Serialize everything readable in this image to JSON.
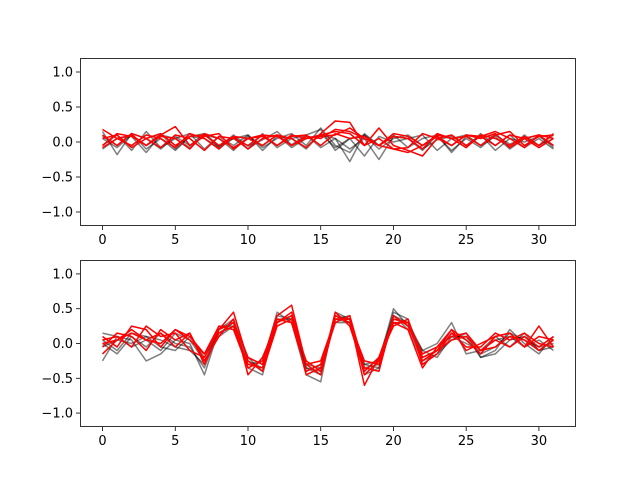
{
  "colors": {
    "black_series": "#000000",
    "red_series": "#ff0000",
    "axes": "#000000",
    "background": "#ffffff"
  },
  "chart_data": [
    {
      "type": "line",
      "xlim": [
        -1.55,
        32.55
      ],
      "ylim": [
        -1.2,
        1.2
      ],
      "xticks": [
        0,
        5,
        10,
        15,
        20,
        25,
        30
      ],
      "yticks": [
        -1.0,
        -0.5,
        0.0,
        0.5,
        1.0
      ],
      "xtick_labels": [
        "0",
        "5",
        "10",
        "15",
        "20",
        "25",
        "30"
      ],
      "ytick_labels": [
        "−1.0",
        "−0.5",
        "0.0",
        "0.5",
        "1.0"
      ],
      "x": [
        0,
        1,
        2,
        3,
        4,
        5,
        6,
        7,
        8,
        9,
        10,
        11,
        12,
        13,
        14,
        15,
        16,
        17,
        18,
        19,
        20,
        21,
        22,
        23,
        24,
        25,
        26,
        27,
        28,
        29,
        30,
        31
      ],
      "grid": false,
      "legend": "none",
      "series": [
        {
          "color": "black",
          "values": [
            0.05,
            -0.08,
            0.1,
            -0.05,
            0.12,
            -0.1,
            0.08,
            0.05,
            -0.07,
            0.1,
            -0.06,
            0.03,
            0.15,
            -0.04,
            0.1,
            0.18,
            -0.12,
            0.05,
            -0.2,
            0.08,
            0.0,
            0.05,
            -0.1,
            0.03,
            0.08,
            -0.05,
            0.1,
            -0.12,
            0.05,
            0.0,
            0.08,
            -0.05
          ]
        },
        {
          "color": "black",
          "values": [
            -0.05,
            0.1,
            -0.12,
            0.15,
            -0.08,
            0.05,
            0.12,
            -0.1,
            0.08,
            -0.05,
            0.1,
            -0.08,
            0.05,
            0.12,
            -0.05,
            0.2,
            -0.05,
            -0.15,
            0.1,
            -0.1,
            0.05,
            0.1,
            -0.05,
            0.08,
            -0.12,
            0.05,
            -0.08,
            0.1,
            -0.03,
            0.05,
            -0.05,
            0.1
          ]
        },
        {
          "color": "black",
          "values": [
            0.15,
            -0.18,
            0.12,
            -0.1,
            0.05,
            -0.12,
            0.08,
            0.12,
            -0.05,
            0.05,
            -0.1,
            0.12,
            -0.08,
            0.05,
            0.1,
            -0.08,
            0.05,
            -0.1,
            0.05,
            -0.25,
            0.08,
            0.05,
            0.1,
            -0.12,
            0.05,
            0.1,
            -0.05,
            0.08,
            -0.1,
            0.05,
            0.1,
            -0.08
          ]
        },
        {
          "color": "black",
          "values": [
            -0.1,
            0.05,
            0.08,
            -0.15,
            0.1,
            0.05,
            -0.08,
            0.1,
            0.05,
            -0.12,
            0.08,
            -0.05,
            0.1,
            -0.08,
            0.05,
            0.1,
            0.05,
            -0.28,
            0.12,
            -0.05,
            0.1,
            -0.08,
            0.05,
            0.1,
            -0.15,
            0.08,
            -0.05,
            0.12,
            -0.08,
            0.1,
            -0.05,
            0.05
          ]
        },
        {
          "color": "black",
          "values": [
            0.08,
            -0.05,
            0.12,
            0.05,
            -0.1,
            0.08,
            -0.05,
            0.12,
            -0.08,
            0.05,
            0.1,
            -0.12,
            0.08,
            0.05,
            -0.1,
            0.12,
            -0.08,
            0.05,
            0.1,
            -0.05,
            0.08,
            0.05,
            -0.12,
            0.1,
            0.05,
            -0.08,
            0.12,
            -0.05,
            0.1,
            -0.08,
            0.05,
            -0.1
          ]
        },
        {
          "color": "red",
          "values": [
            0.18,
            0.05,
            -0.05,
            0.1,
            0.05,
            -0.08,
            0.12,
            0.05,
            -0.1,
            0.08,
            0.05,
            -0.05,
            0.1,
            0.05,
            -0.08,
            0.12,
            0.3,
            0.28,
            -0.05,
            0.2,
            -0.05,
            -0.12,
            -0.2,
            0.05,
            0.1,
            -0.05,
            0.08,
            0.15,
            0.05,
            -0.08,
            0.1,
            0.05
          ]
        },
        {
          "color": "red",
          "values": [
            -0.05,
            0.12,
            0.08,
            -0.05,
            0.1,
            0.22,
            -0.05,
            0.08,
            0.12,
            -0.1,
            0.05,
            0.08,
            -0.05,
            0.1,
            0.05,
            0.08,
            0.1,
            0.2,
            0.05,
            -0.05,
            0.08,
            0.05,
            -0.1,
            0.12,
            0.05,
            0.08,
            -0.05,
            0.1,
            0.15,
            -0.05,
            0.08,
            0.1
          ]
        },
        {
          "color": "red",
          "values": [
            0.1,
            -0.05,
            0.12,
            0.05,
            -0.08,
            0.1,
            0.05,
            -0.12,
            0.08,
            0.05,
            -0.05,
            0.1,
            0.08,
            -0.05,
            0.05,
            0.1,
            0.15,
            0.12,
            -0.05,
            0.05,
            -0.1,
            -0.15,
            -0.05,
            0.08,
            -0.05,
            0.1,
            0.05,
            0.12,
            -0.08,
            0.05,
            0.1,
            -0.05
          ]
        },
        {
          "color": "red",
          "values": [
            0.05,
            0.1,
            -0.08,
            0.05,
            0.12,
            -0.05,
            0.08,
            0.1,
            -0.05,
            0.08,
            -0.1,
            0.05,
            0.1,
            -0.05,
            0.08,
            0.05,
            0.18,
            0.15,
            0.05,
            -0.05,
            0.12,
            0.08,
            -0.05,
            0.1,
            0.05,
            -0.08,
            0.1,
            0.05,
            -0.05,
            0.08,
            -0.05,
            0.12
          ]
        },
        {
          "color": "red",
          "values": [
            -0.08,
            0.05,
            0.1,
            -0.05,
            0.08,
            0.05,
            -0.1,
            0.12,
            0.05,
            -0.08,
            0.05,
            0.1,
            -0.05,
            0.08,
            0.1,
            -0.05,
            0.12,
            0.05,
            0.08,
            -0.05,
            -0.1,
            -0.08,
            0.12,
            0.05,
            -0.05,
            0.1,
            0.08,
            -0.05,
            0.1,
            0.05,
            -0.08,
            0.05
          ]
        }
      ]
    },
    {
      "type": "line",
      "xlim": [
        -1.55,
        32.55
      ],
      "ylim": [
        -1.2,
        1.2
      ],
      "xticks": [
        0,
        5,
        10,
        15,
        20,
        25,
        30
      ],
      "yticks": [
        -1.0,
        -0.5,
        0.0,
        0.5,
        1.0
      ],
      "xtick_labels": [
        "0",
        "5",
        "10",
        "15",
        "20",
        "25",
        "30"
      ],
      "ytick_labels": [
        "−1.0",
        "−0.5",
        "0.0",
        "0.5",
        "1.0"
      ],
      "x": [
        0,
        1,
        2,
        3,
        4,
        5,
        6,
        7,
        8,
        9,
        10,
        11,
        12,
        13,
        14,
        15,
        16,
        17,
        18,
        19,
        20,
        21,
        22,
        23,
        24,
        25,
        26,
        27,
        28,
        29,
        30,
        31
      ],
      "grid": false,
      "legend": "none",
      "series": [
        {
          "color": "black",
          "values": [
            -0.25,
            0.1,
            0.05,
            -0.25,
            -0.15,
            0.05,
            0.0,
            -0.45,
            0.2,
            0.35,
            -0.2,
            -0.4,
            0.35,
            0.3,
            -0.45,
            -0.55,
            0.45,
            0.35,
            -0.3,
            -0.25,
            0.5,
            0.25,
            -0.1,
            0.0,
            0.3,
            -0.15,
            -0.1,
            0.1,
            -0.05,
            0.15,
            -0.1,
            0.05
          ]
        },
        {
          "color": "black",
          "values": [
            0.15,
            0.1,
            -0.05,
            0.05,
            -0.1,
            0.15,
            0.05,
            -0.25,
            0.1,
            0.25,
            -0.3,
            -0.25,
            0.4,
            0.35,
            -0.3,
            -0.35,
            0.3,
            0.3,
            -0.4,
            -0.2,
            0.4,
            0.3,
            -0.15,
            -0.05,
            0.1,
            0.1,
            -0.2,
            -0.1,
            0.2,
            0.0,
            -0.15,
            0.1
          ]
        },
        {
          "color": "black",
          "values": [
            0.05,
            -0.1,
            0.15,
            0.1,
            -0.05,
            -0.1,
            0.1,
            -0.2,
            0.15,
            0.3,
            -0.25,
            -0.35,
            0.3,
            0.4,
            -0.35,
            -0.4,
            0.4,
            0.35,
            -0.35,
            -0.3,
            0.45,
            0.35,
            -0.2,
            -0.1,
            0.15,
            0.05,
            -0.15,
            -0.05,
            0.15,
            0.05,
            -0.05,
            0.0
          ]
        },
        {
          "color": "black",
          "values": [
            -0.05,
            0.05,
            0.0,
            0.1,
            0.05,
            -0.05,
            -0.1,
            -0.3,
            0.25,
            0.25,
            -0.35,
            -0.45,
            0.35,
            0.35,
            -0.4,
            -0.3,
            0.35,
            0.4,
            -0.45,
            -0.35,
            0.4,
            0.2,
            -0.25,
            -0.15,
            0.05,
            0.15,
            -0.2,
            -0.15,
            0.05,
            0.1,
            -0.1,
            -0.05
          ]
        },
        {
          "color": "black",
          "values": [
            0.0,
            -0.15,
            0.1,
            -0.05,
            0.15,
            0.0,
            -0.05,
            -0.35,
            0.2,
            0.3,
            -0.2,
            -0.3,
            0.45,
            0.3,
            -0.35,
            -0.45,
            0.35,
            0.3,
            -0.3,
            -0.35,
            0.35,
            0.3,
            -0.1,
            -0.2,
            0.1,
            0.0,
            -0.1,
            0.05,
            0.1,
            -0.05,
            0.05,
            -0.1
          ]
        },
        {
          "color": "red",
          "values": [
            0.1,
            -0.05,
            0.25,
            0.2,
            -0.05,
            0.2,
            0.05,
            -0.15,
            0.25,
            0.2,
            -0.35,
            -0.25,
            0.4,
            0.55,
            -0.3,
            -0.25,
            0.35,
            0.35,
            -0.6,
            -0.2,
            0.35,
            0.3,
            -0.25,
            -0.1,
            0.2,
            0.05,
            -0.15,
            0.1,
            0.15,
            -0.05,
            0.25,
            -0.05
          ]
        },
        {
          "color": "red",
          "values": [
            -0.15,
            0.05,
            0.2,
            0.05,
            0.15,
            -0.05,
            0.15,
            -0.25,
            0.1,
            0.35,
            -0.45,
            -0.2,
            0.3,
            0.4,
            -0.45,
            -0.35,
            0.4,
            0.3,
            -0.25,
            -0.3,
            0.3,
            0.2,
            -0.35,
            -0.05,
            0.1,
            0.15,
            -0.1,
            0.05,
            -0.05,
            0.1,
            -0.05,
            0.1
          ]
        },
        {
          "color": "red",
          "values": [
            0.05,
            0.1,
            -0.05,
            0.25,
            0.1,
            0.15,
            -0.1,
            -0.2,
            0.2,
            0.45,
            -0.25,
            -0.4,
            0.25,
            0.35,
            -0.25,
            -0.4,
            0.45,
            0.25,
            -0.4,
            -0.2,
            0.25,
            0.35,
            -0.3,
            -0.15,
            0.15,
            -0.05,
            -0.05,
            0.15,
            0.05,
            0.15,
            0.0,
            -0.05
          ]
        },
        {
          "color": "red",
          "values": [
            -0.05,
            0.15,
            0.1,
            -0.1,
            0.2,
            0.05,
            0.15,
            -0.3,
            0.15,
            0.25,
            -0.3,
            -0.35,
            0.35,
            0.3,
            -0.4,
            -0.3,
            0.3,
            0.4,
            -0.35,
            -0.4,
            0.4,
            0.25,
            -0.2,
            -0.1,
            0.05,
            0.1,
            -0.1,
            -0.05,
            0.1,
            0.05,
            -0.1,
            0.05
          ]
        },
        {
          "color": "red",
          "values": [
            0.0,
            0.05,
            0.15,
            0.05,
            0.0,
            0.2,
            0.1,
            -0.15,
            0.2,
            0.3,
            -0.2,
            -0.3,
            0.3,
            0.45,
            -0.3,
            -0.45,
            0.35,
            0.35,
            -0.45,
            -0.25,
            0.3,
            0.3,
            -0.15,
            -0.05,
            0.2,
            -0.1,
            0.0,
            0.1,
            0.15,
            -0.05,
            0.1,
            0.05
          ]
        }
      ]
    }
  ]
}
